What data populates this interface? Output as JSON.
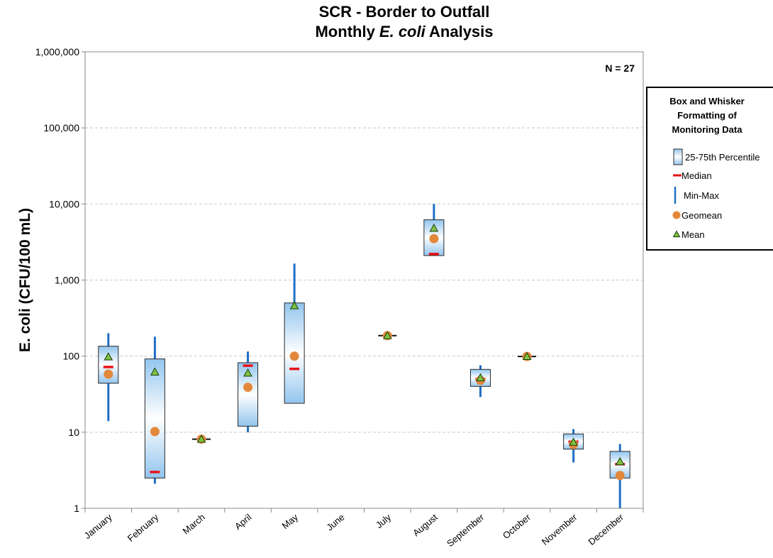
{
  "chart_data": {
    "type": "box",
    "title_line1": "SCR - Border to Outfall",
    "title_line2_pre": "Monthly ",
    "title_line2_italic": "E. coli",
    "title_line2_post": " Analysis",
    "ylabel": "E. coli (CFU/100 mL)",
    "yscale": "log",
    "ylim": [
      1,
      1000000
    ],
    "y_ticks": [
      {
        "value": 1,
        "label": "1"
      },
      {
        "value": 10,
        "label": "10"
      },
      {
        "value": 100,
        "label": "100"
      },
      {
        "value": 1000,
        "label": "1,000"
      },
      {
        "value": 10000,
        "label": "10,000"
      },
      {
        "value": 100000,
        "label": "100,000"
      },
      {
        "value": 1000000,
        "label": "1,000,000"
      }
    ],
    "grid": "horizontal dashed",
    "annotation": "N = 27",
    "categories": [
      "January",
      "February",
      "March",
      "April",
      "May",
      "June",
      "July",
      "August",
      "September",
      "October",
      "November",
      "December"
    ],
    "series": [
      {
        "month": "January",
        "min": 14,
        "q1": 44,
        "median": 72,
        "q3": 135,
        "max": 200,
        "geomean": 58,
        "mean": 98
      },
      {
        "month": "February",
        "min": 2.1,
        "q1": 2.5,
        "median": 3,
        "q3": 92,
        "max": 180,
        "geomean": 10.2,
        "mean": 62
      },
      {
        "month": "March",
        "min": 8.1,
        "q1": 8.1,
        "median": 8.1,
        "q3": 8.1,
        "max": 8.1,
        "geomean": 8.1,
        "mean": 8.1
      },
      {
        "month": "April",
        "min": 10,
        "q1": 12,
        "median": 75,
        "q3": 82,
        "max": 115,
        "geomean": 39,
        "mean": 60
      },
      {
        "month": "May",
        "min": 24,
        "q1": 24,
        "median": 68,
        "q3": 500,
        "max": 1650,
        "geomean": 100,
        "mean": 460
      },
      {
        "month": "June"
      },
      {
        "month": "July",
        "min": 186,
        "q1": 186,
        "median": 186,
        "q3": 186,
        "max": 186,
        "geomean": 186,
        "mean": 186
      },
      {
        "month": "August",
        "min": 2100,
        "q1": 2100,
        "median": 2200,
        "q3": 6200,
        "max": 10000,
        "geomean": 3500,
        "mean": 4800
      },
      {
        "month": "September",
        "min": 29,
        "q1": 40,
        "median": 50,
        "q3": 67,
        "max": 76,
        "geomean": 48,
        "mean": 52
      },
      {
        "month": "October",
        "min": 99,
        "q1": 99,
        "median": 99,
        "q3": 99,
        "max": 99,
        "geomean": 99,
        "mean": 99
      },
      {
        "month": "November",
        "min": 4,
        "q1": 6,
        "median": 7.5,
        "q3": 9.5,
        "max": 11,
        "geomean": 6.9,
        "mean": 7.4
      },
      {
        "month": "December",
        "min": 1,
        "q1": 2.5,
        "median": 3.8,
        "q3": 5.6,
        "max": 7,
        "geomean": 2.7,
        "mean": 4.1
      }
    ],
    "legend": {
      "placement": "right",
      "title_lines": [
        "Box and Whisker",
        "Formatting of",
        "Monitoring Data"
      ],
      "items": [
        {
          "key": "box",
          "label": "25-75th Percentile"
        },
        {
          "key": "median",
          "label": "Median"
        },
        {
          "key": "minmax",
          "label": "Min-Max"
        },
        {
          "key": "geomean",
          "label": "Geomean"
        },
        {
          "key": "mean",
          "label": "Mean"
        }
      ]
    },
    "colors": {
      "whisker": "#1f6fc4",
      "median": "#e8141b",
      "geomean": "#e2883b",
      "mean_fill": "#7ec242",
      "mean_stroke": "#1a3d0a",
      "box_edge": "#2a2a2a",
      "box_grad_edge": "#92c5ee",
      "box_grad_mid": "#ffffff",
      "grid": "#c8c8c8"
    }
  }
}
